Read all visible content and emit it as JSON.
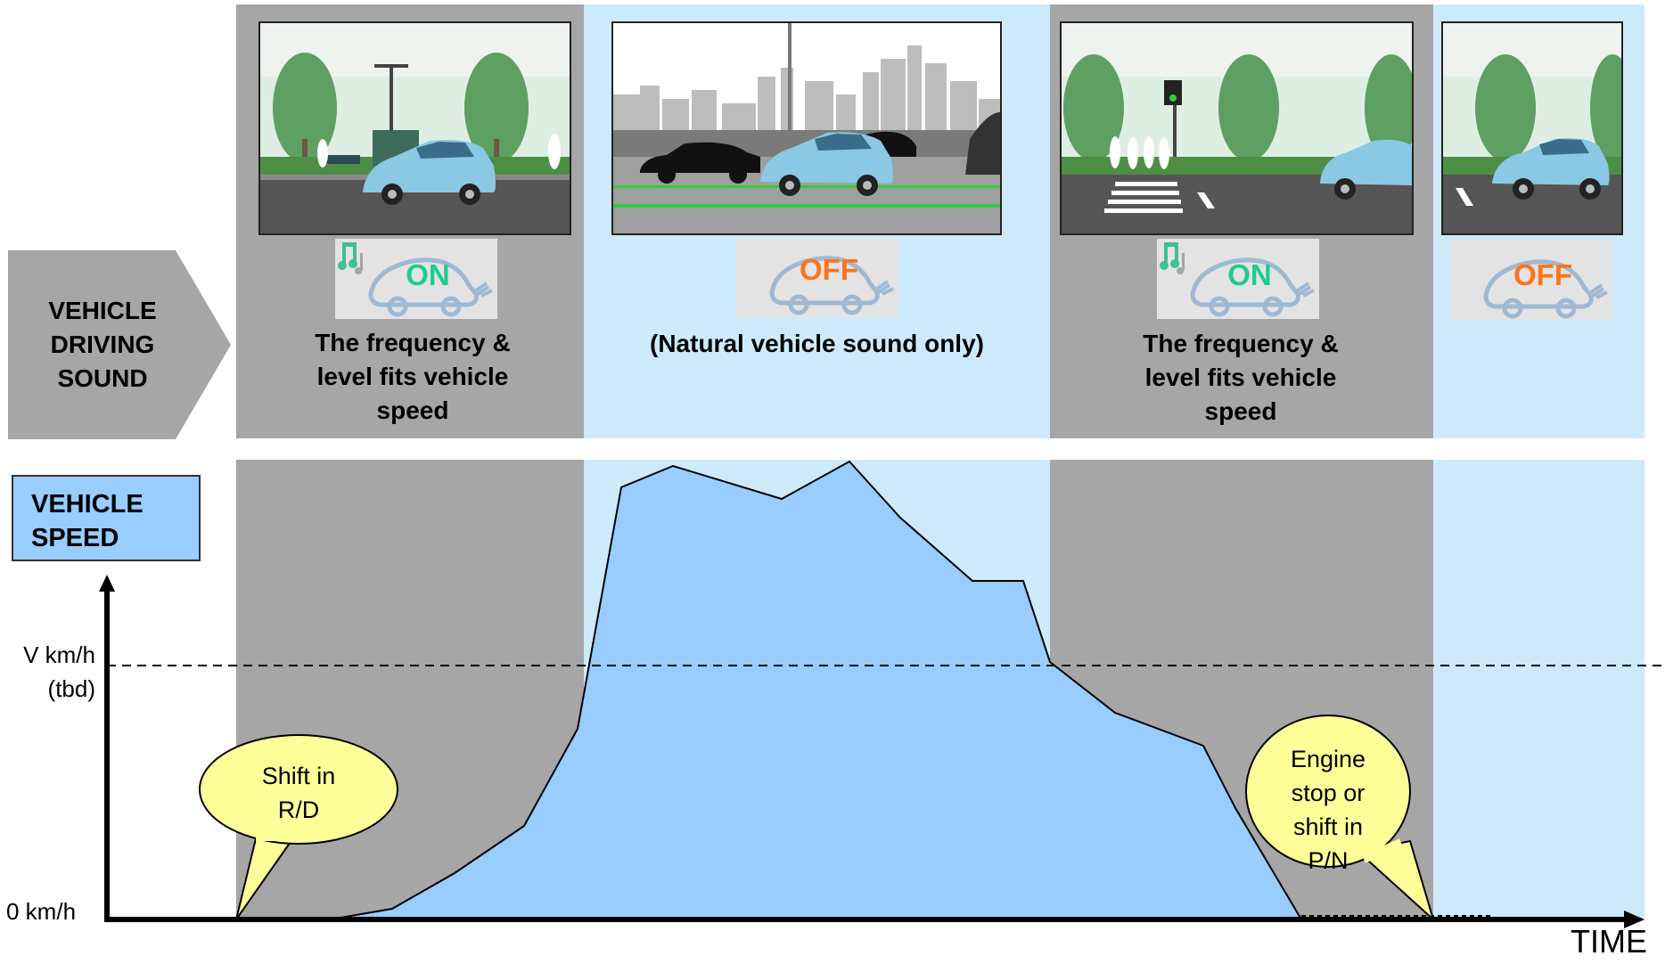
{
  "row_label": "VEHICLE DRIVING SOUND",
  "row_label_lines": [
    "VEHICLE",
    "DRIVING",
    "SOUND"
  ],
  "phases": [
    {
      "band": "gray",
      "badge": "ON",
      "description_lines": [
        "The frequency &",
        "level fits vehicle",
        "speed"
      ]
    },
    {
      "band": "blue",
      "badge": "OFF",
      "description_lines": [
        "(Natural vehicle sound only)"
      ]
    },
    {
      "band": "gray",
      "badge": "ON",
      "description_lines": [
        "The frequency &",
        "level fits vehicle",
        "speed"
      ]
    },
    {
      "band": "blue",
      "badge": "OFF",
      "description_lines": []
    }
  ],
  "speed_box_lines": [
    "VEHICLE",
    "SPEED"
  ],
  "y_axis": {
    "threshold_label_lines": [
      "V km/h",
      "(tbd)"
    ],
    "zero_label": "0 km/h"
  },
  "x_axis_label": "TIME",
  "callouts": [
    {
      "lines": [
        "Shift in",
        "R/D"
      ]
    },
    {
      "lines": [
        "Engine",
        "stop or",
        "shift in",
        "P/N"
      ]
    }
  ],
  "colors": {
    "on_text": "#1fcc8f",
    "off_text": "#ff7417",
    "gray_band": "#a6a6a6",
    "blue_band": "#cdeafb",
    "speed_fill": "#99ccff",
    "callout_fill": "#ffff99"
  }
}
